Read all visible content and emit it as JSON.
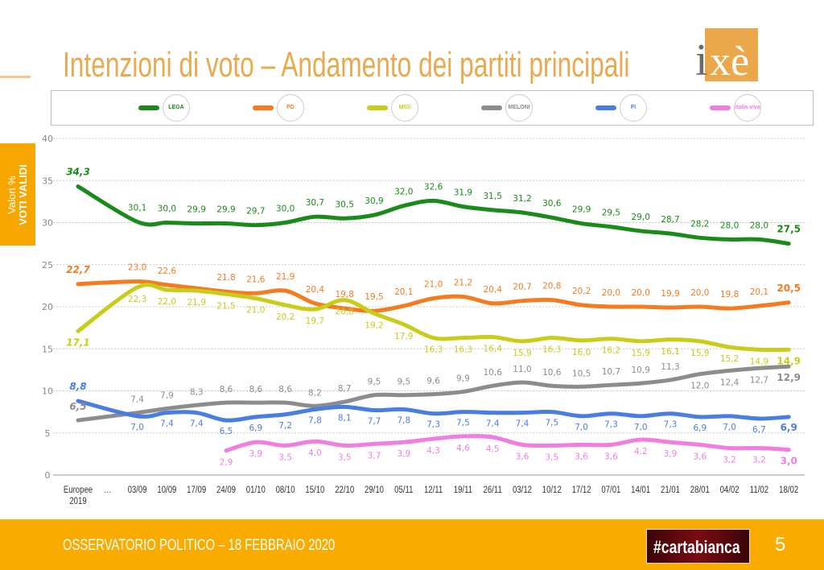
{
  "header": {
    "title": "Intenzioni di voto – Andamento dei partiti principali",
    "logo_text": "ixè"
  },
  "side_tab": {
    "line1": "Valori %",
    "line2": "VOTI VALIDI"
  },
  "footer": {
    "text": "OSSERVATORIO POLITICO – 18 FEBBRAIO 2020",
    "badge": "#cartabianca",
    "page": "5"
  },
  "colors": {
    "accent": "#f7a600",
    "title": "#e9a94e",
    "footer": "#f9ab00"
  },
  "chart_data": {
    "type": "line",
    "title": "Intenzioni di voto – Andamento dei partiti principali",
    "ylabel": "Valori % VOTI VALIDI",
    "ylim": [
      0,
      40
    ],
    "yticks": [
      0,
      5,
      10,
      15,
      20,
      25,
      30,
      35,
      40
    ],
    "grid": true,
    "legend_position": "top",
    "decimal_separator": ",",
    "categories": [
      "Europee 2019",
      "…",
      "03/09",
      "10/09",
      "17/09",
      "24/09",
      "01/10",
      "08/10",
      "15/10",
      "22/10",
      "29/10",
      "05/11",
      "12/11",
      "19/11",
      "26/11",
      "03/12",
      "10/12",
      "17/12",
      "07/01",
      "14/01",
      "21/01",
      "28/01",
      "04/02",
      "11/02",
      "18/02"
    ],
    "series": [
      {
        "legend_logo": "Lega Salvini Premier",
        "logo_text": "LEGA",
        "color": "#1a8a1a",
        "values": [
          34.3,
          null,
          30.1,
          30.0,
          29.9,
          29.9,
          29.7,
          30.0,
          30.7,
          30.5,
          30.9,
          32.0,
          32.6,
          31.9,
          31.5,
          31.2,
          30.6,
          29.9,
          29.5,
          29.0,
          28.7,
          28.2,
          28.0,
          28.0,
          27.5
        ]
      },
      {
        "legend_logo": "Partito Democratico",
        "logo_text": "PD",
        "color": "#f47b20",
        "values": [
          22.7,
          null,
          23.0,
          22.6,
          null,
          21.8,
          21.6,
          21.9,
          20.4,
          19.8,
          19.5,
          20.1,
          21.0,
          21.2,
          20.4,
          20.7,
          20.8,
          20.2,
          20.0,
          20.0,
          19.9,
          20.0,
          19.8,
          20.1,
          20.5
        ]
      },
      {
        "legend_logo": "MoVimento 5 Stelle",
        "logo_text": "M5S",
        "color": "#c8cc1a",
        "values": [
          17.1,
          null,
          22.3,
          22.0,
          21.9,
          21.5,
          21.0,
          20.2,
          19.7,
          20.8,
          19.2,
          17.9,
          16.3,
          16.3,
          16.4,
          15.9,
          16.3,
          16.0,
          16.2,
          15.9,
          16.1,
          15.9,
          15.2,
          14.9,
          14.9
        ]
      },
      {
        "legend_logo": "Fratelli d'Italia – Meloni",
        "logo_text": "MELONI",
        "color": "#8c8c8c",
        "values": [
          6.5,
          null,
          7.4,
          7.9,
          8.3,
          8.6,
          8.6,
          8.6,
          8.2,
          8.7,
          9.5,
          9.5,
          9.6,
          9.9,
          10.6,
          11.0,
          10.6,
          10.5,
          10.7,
          10.9,
          11.3,
          12.0,
          12.4,
          12.7,
          12.9
        ]
      },
      {
        "legend_logo": "Forza Italia – Berlusconi Presidente",
        "logo_text": "FI",
        "color": "#4a7de0",
        "values": [
          8.8,
          null,
          7.0,
          7.4,
          7.4,
          6.5,
          6.9,
          7.2,
          7.8,
          8.1,
          7.7,
          7.8,
          7.3,
          7.5,
          7.4,
          7.4,
          7.5,
          7.0,
          7.3,
          7.0,
          7.3,
          6.9,
          7.0,
          6.7,
          6.9
        ]
      },
      {
        "legend_logo": "Italia Viva",
        "logo_text": "italia viva",
        "color": "#f07de0",
        "values": [
          null,
          null,
          null,
          null,
          null,
          2.9,
          3.9,
          3.5,
          4.0,
          3.5,
          3.7,
          3.9,
          4.3,
          4.6,
          4.5,
          3.6,
          3.5,
          3.6,
          3.6,
          4.2,
          3.9,
          3.6,
          3.2,
          3.2,
          3.0
        ]
      }
    ]
  }
}
